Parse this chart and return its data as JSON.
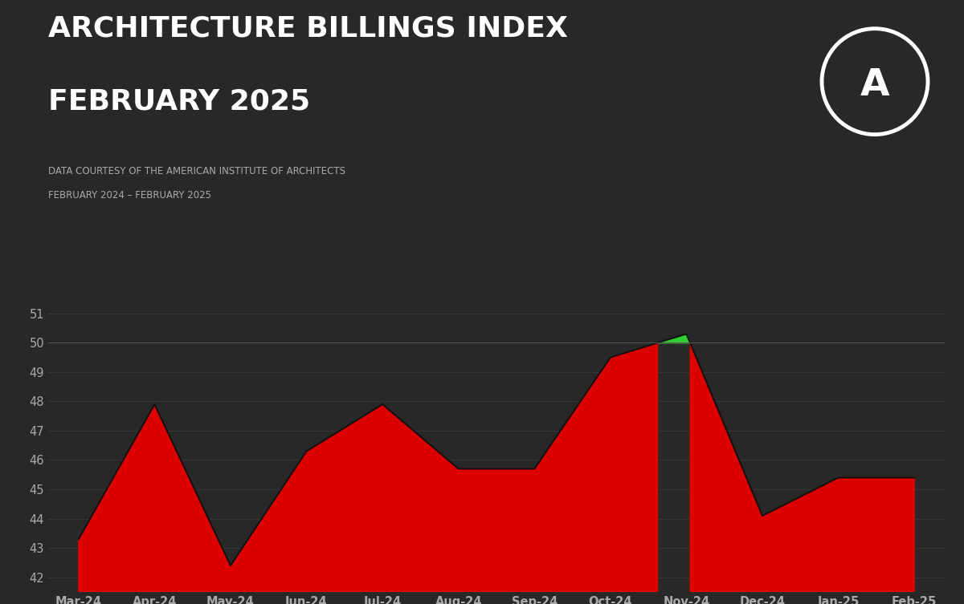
{
  "title_line1": "ARCHITECTURE BILLINGS INDEX",
  "title_line2": "FEBRUARY 2025",
  "subtitle_line1": "DATA COURTESY OF THE AMERICAN INSTITUTE OF ARCHITECTS",
  "subtitle_line2": "FEBRUARY 2024 – FEBRUARY 2025",
  "background_color": "#282828",
  "title_color": "#ffffff",
  "subtitle_color": "#aaaaaa",
  "axis_label_color": "#aaaaaa",
  "grid_color": "#3a3a3a",
  "threshold": 50.0,
  "red_fill_color": "#dd0000",
  "green_fill_color": "#33cc33",
  "months": [
    "Mar-24",
    "Apr-24",
    "May-24",
    "Jun-24",
    "Jul-24",
    "Aug-24",
    "Sep-24",
    "Oct-24",
    "Nov-24",
    "Dec-24",
    "Jan-25",
    "Feb-25"
  ],
  "values": [
    43.3,
    47.9,
    42.4,
    46.3,
    47.9,
    45.7,
    45.7,
    49.5,
    50.3,
    44.1,
    45.4,
    45.4
  ],
  "ylim_min": 41.5,
  "ylim_max": 51.8,
  "yticks": [
    42,
    43,
    44,
    45,
    46,
    47,
    48,
    49,
    50,
    51
  ],
  "logo_circle_color": "#ffffff",
  "logo_text": "A"
}
